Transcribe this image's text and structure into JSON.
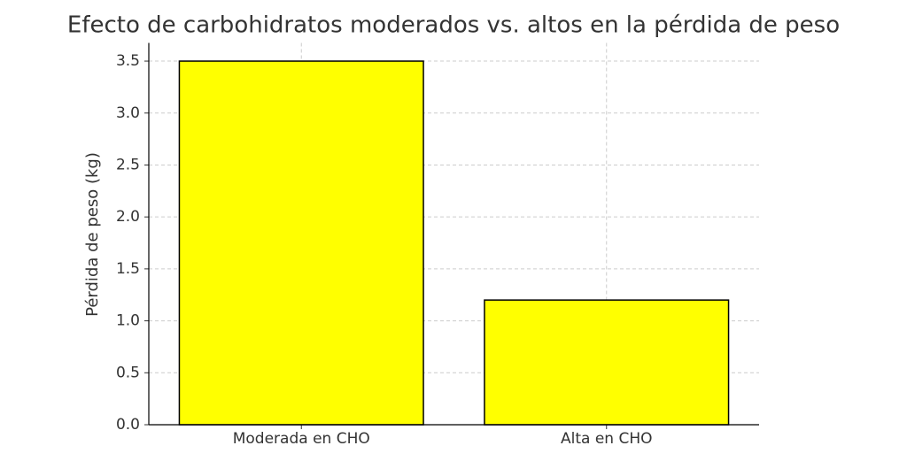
{
  "chart_data": {
    "type": "bar",
    "title": "Efecto de carbohidratos moderados vs. altos en la pérdida de peso",
    "y_label": "Pérdida de peso (kg)",
    "categories": [
      "Moderada en CHO",
      "Alta en CHO"
    ],
    "values": [
      3.5,
      1.2
    ],
    "color": "#ffff00",
    "edge_color": "#000000",
    "ylim": [
      0,
      3.675
    ],
    "yticks": [
      {
        "value": 0,
        "label": "0.0"
      },
      0.5,
      {
        "value": 1,
        "label": "1.0"
      },
      1.5,
      {
        "value": 2,
        "label": "2.0"
      },
      2.5,
      {
        "value": 3,
        "label": "3.0"
      },
      3.5
    ],
    "grid": true
  }
}
